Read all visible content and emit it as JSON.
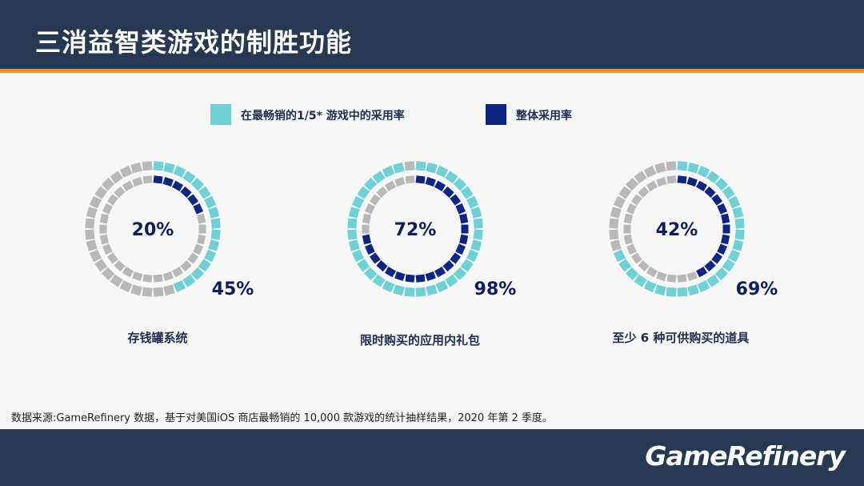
{
  "header": {
    "title": "三消益智类游戏的制胜功能"
  },
  "legend": [
    {
      "label": "在最畅销的1/5* 游戏中的采用率",
      "color": "#6fd0d6"
    },
    {
      "label": "整体采用率",
      "color": "#0e2581"
    }
  ],
  "colors": {
    "inactive": "#b8b8b8",
    "outer_active": "#6fd0d6",
    "inner_active": "#0e2581",
    "value_text": "#0e1e5c"
  },
  "chart_data": [
    {
      "type": "radial-percent",
      "category": "存钱罐系统",
      "top_fifth_percent": 45,
      "overall_percent": 20,
      "inner_label": "20%",
      "outer_label": "45%"
    },
    {
      "type": "radial-percent",
      "category": "限时购买的应用内礼包",
      "top_fifth_percent": 98,
      "overall_percent": 72,
      "inner_label": "72%",
      "outer_label": "98%"
    },
    {
      "type": "radial-percent",
      "category": "至少 6 种可供购买的道具",
      "top_fifth_percent": 69,
      "overall_percent": 42,
      "inner_label": "42%",
      "outer_label": "69%"
    }
  ],
  "source": "数据来源:GameRefinery 数据，基于对美国iOS 商店最畅销的 10,000 款游戏的统计抽样结果，2020 年第 2 季度。",
  "footer": {
    "logo": "GameRefinery"
  }
}
